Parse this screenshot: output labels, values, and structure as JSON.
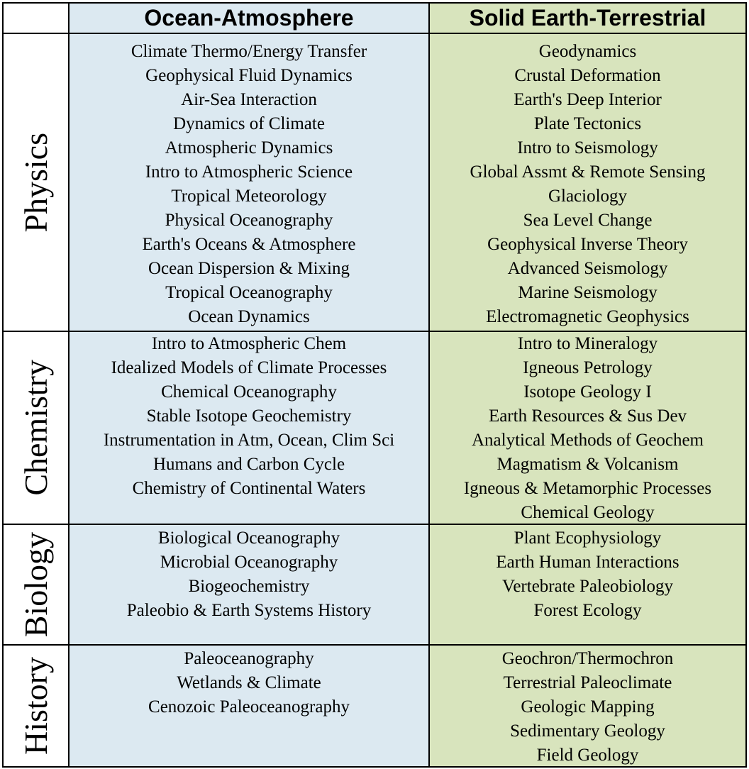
{
  "table": {
    "columns": [
      "Ocean-Atmosphere",
      "Solid Earth-Terrestrial"
    ],
    "rows": [
      {
        "label": "Physics",
        "cells": [
          [
            "Climate Thermo/Energy Transfer",
            "Geophysical Fluid Dynamics",
            "Air-Sea Interaction",
            "Dynamics of Climate",
            "Atmospheric Dynamics",
            "Intro to Atmospheric Science",
            "Tropical Meteorology",
            "Physical Oceanography",
            "Earth's Oceans & Atmosphere",
            "Ocean Dispersion & Mixing",
            "Tropical Oceanography",
            "Ocean Dynamics"
          ],
          [
            "Geodynamics",
            "Crustal Deformation",
            "Earth's Deep Interior",
            "Plate Tectonics",
            "Intro to Seismology",
            "Global Assmt & Remote Sensing",
            "Glaciology",
            "Sea Level Change",
            "Geophysical Inverse Theory",
            "Advanced Seismology",
            "Marine Seismology",
            "Electromagnetic Geophysics"
          ]
        ]
      },
      {
        "label": "Chemistry",
        "cells": [
          [
            "Intro to Atmospheric Chem",
            "Idealized Models of Climate Processes",
            "Chemical Oceanography",
            "Stable Isotope Geochemistry",
            "Instrumentation in Atm, Ocean, Clim Sci",
            "Humans and Carbon Cycle",
            "Chemistry of Continental Waters"
          ],
          [
            "Intro to Mineralogy",
            "Igneous Petrology",
            "Isotope Geology I",
            "Earth Resources & Sus Dev",
            "Analytical Methods of Geochem",
            "Magmatism & Volcanism",
            "Igneous & Metamorphic Processes",
            "Chemical Geology"
          ]
        ]
      },
      {
        "label": "Biology",
        "cells": [
          [
            "Biological Oceanography",
            "Microbial Oceanography",
            "Biogeochemistry",
            "Paleobio & Earth Systems History"
          ],
          [
            "Plant Ecophysiology",
            "Earth Human Interactions",
            "Vertebrate Paleobiology",
            "Forest Ecology"
          ]
        ]
      },
      {
        "label": "History",
        "cells": [
          [
            "Paleoceanography",
            "Wetlands & Climate",
            "Cenozoic Paleoceanography"
          ],
          [
            "Geochron/Thermochron",
            "Terrestrial Paleoclimate",
            "Geologic Mapping",
            "Sedimentary Geology",
            "Field Geology"
          ]
        ]
      }
    ]
  }
}
